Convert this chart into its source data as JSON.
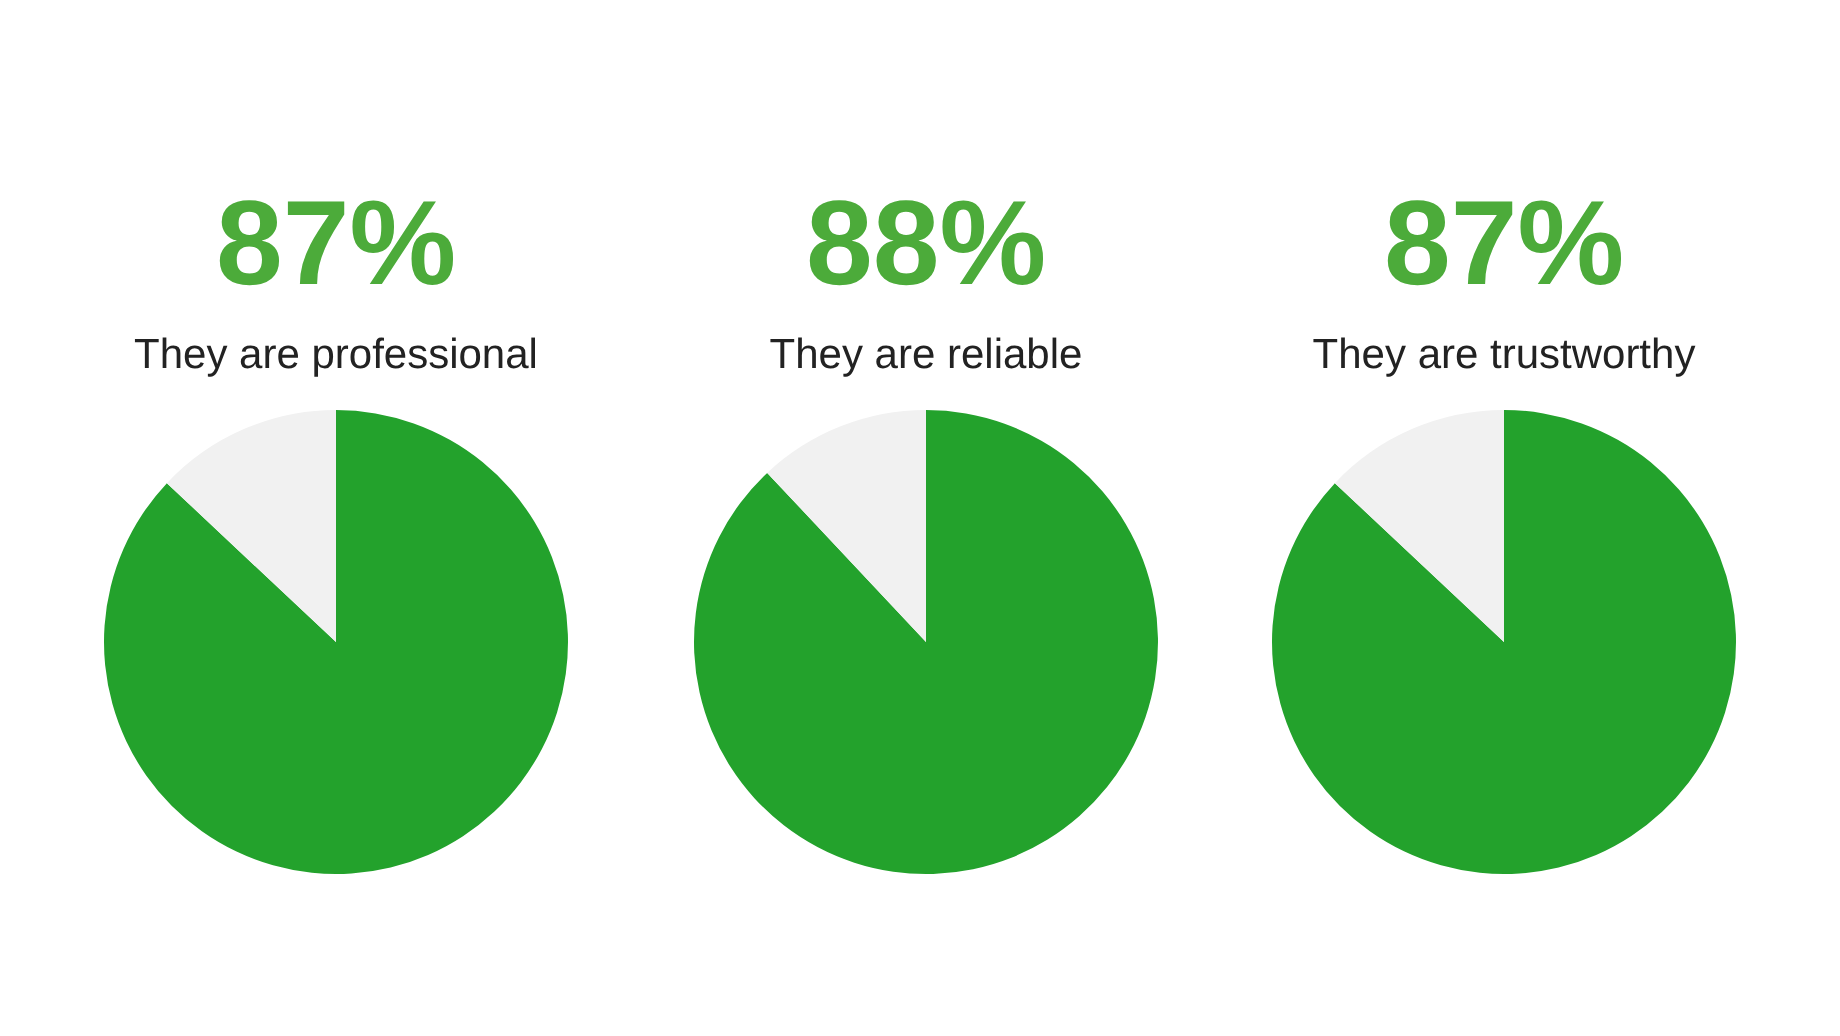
{
  "chart_data": [
    {
      "type": "pie",
      "title": "87%",
      "subtitle": "They are professional",
      "categories": [
        null,
        null
      ],
      "values": [
        87,
        13
      ],
      "colors": [
        "#23a22c",
        "#f1f1f1"
      ]
    },
    {
      "type": "pie",
      "title": "88%",
      "subtitle": "They are reliable",
      "categories": [
        null,
        null
      ],
      "values": [
        88,
        12
      ],
      "colors": [
        "#23a22c",
        "#f1f1f1"
      ]
    },
    {
      "type": "pie",
      "title": "87%",
      "subtitle": "They are trustworthy",
      "categories": [
        null,
        null
      ],
      "values": [
        87,
        13
      ],
      "colors": [
        "#23a22c",
        "#f1f1f1"
      ]
    }
  ]
}
